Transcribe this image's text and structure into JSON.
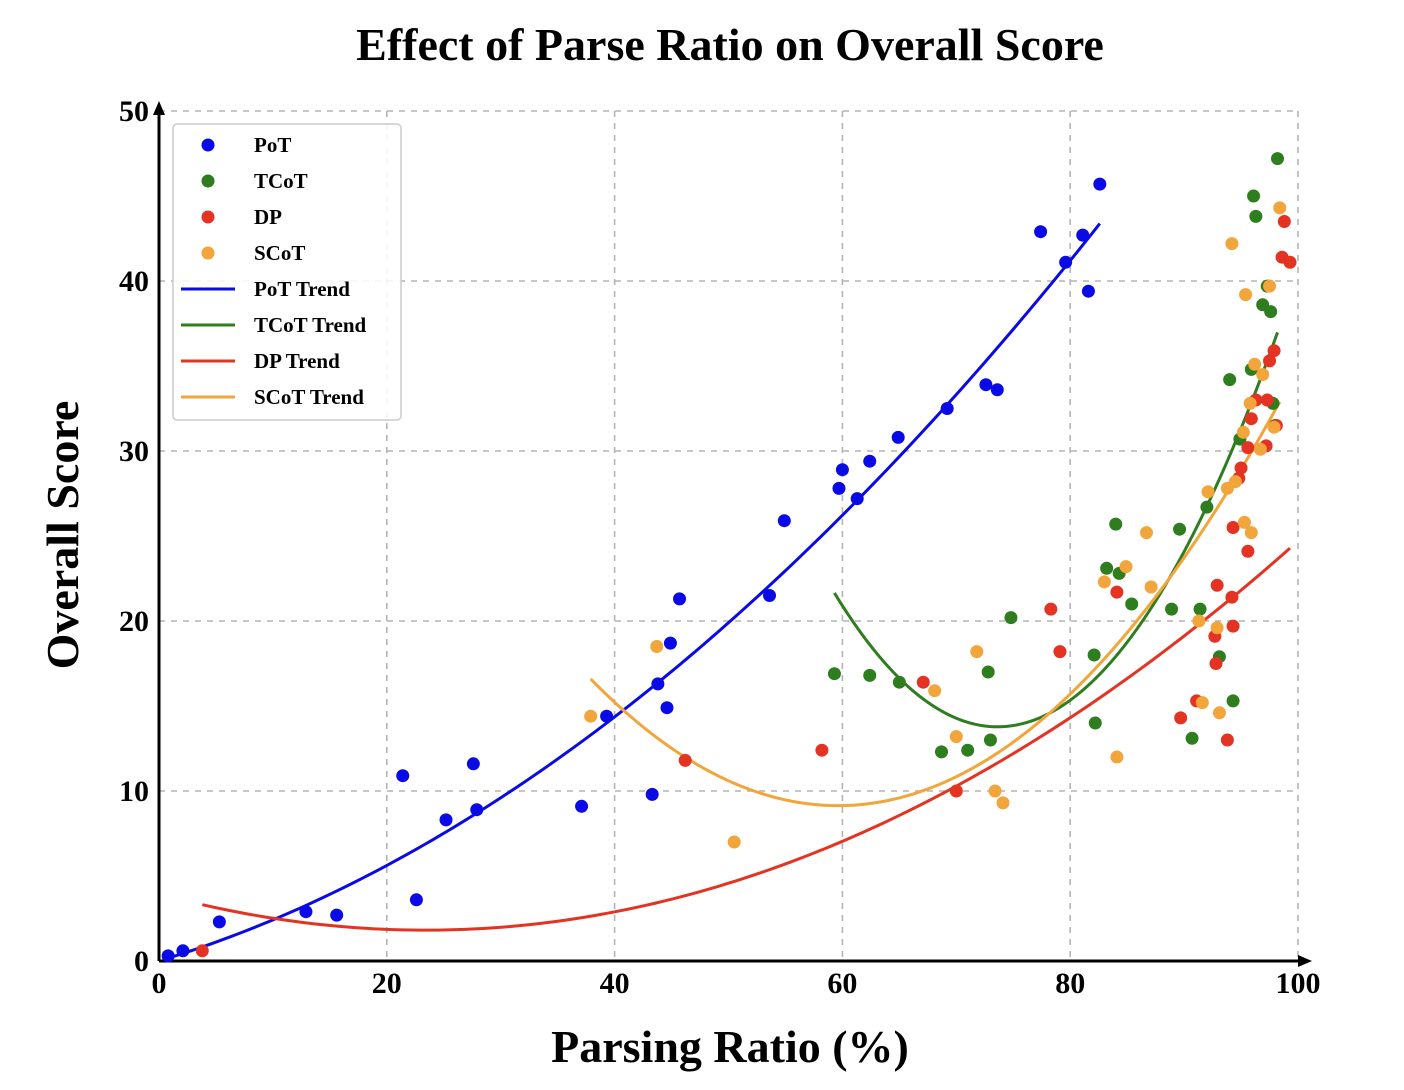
{
  "chart_data": {
    "type": "scatter",
    "title": "Effect of Parse Ratio on Overall Score",
    "xlabel": "Parsing Ratio (%)",
    "ylabel": "Overall Score",
    "xlim": [
      0,
      100
    ],
    "ylim": [
      0,
      50
    ],
    "xticks": [
      0,
      20,
      40,
      60,
      80,
      100
    ],
    "yticks": [
      0,
      10,
      20,
      30,
      40,
      50
    ],
    "grid": true,
    "legend_position": "top-left",
    "series": [
      {
        "name": "PoT",
        "color": "#0a0ae6",
        "points": [
          [
            0.8,
            0.3
          ],
          [
            2.1,
            0.6
          ],
          [
            5.3,
            2.3
          ],
          [
            12.9,
            2.9
          ],
          [
            15.6,
            2.7
          ],
          [
            21.4,
            10.9
          ],
          [
            22.6,
            3.6
          ],
          [
            25.2,
            8.3
          ],
          [
            27.6,
            11.6
          ],
          [
            27.9,
            8.9
          ],
          [
            37.1,
            9.1
          ],
          [
            39.3,
            14.4
          ],
          [
            43.3,
            9.8
          ],
          [
            43.8,
            16.3
          ],
          [
            44.6,
            14.9
          ],
          [
            44.9,
            18.7
          ],
          [
            45.7,
            21.3
          ],
          [
            53.6,
            21.5
          ],
          [
            54.9,
            25.9
          ],
          [
            59.7,
            27.8
          ],
          [
            60.0,
            28.9
          ],
          [
            61.3,
            27.2
          ],
          [
            62.4,
            29.4
          ],
          [
            64.9,
            30.8
          ],
          [
            69.2,
            32.5
          ],
          [
            72.6,
            33.9
          ],
          [
            73.6,
            33.6
          ],
          [
            77.4,
            42.9
          ],
          [
            79.6,
            41.1
          ],
          [
            81.1,
            42.7
          ],
          [
            81.6,
            39.4
          ],
          [
            82.6,
            45.7
          ]
        ]
      },
      {
        "name": "TCoT",
        "color": "#2e7d1e",
        "points": [
          [
            59.3,
            16.9
          ],
          [
            62.4,
            16.8
          ],
          [
            65.0,
            16.4
          ],
          [
            68.7,
            12.3
          ],
          [
            71.0,
            12.4
          ],
          [
            72.8,
            17.0
          ],
          [
            73.0,
            13.0
          ],
          [
            74.8,
            20.2
          ],
          [
            82.1,
            18.0
          ],
          [
            82.2,
            14.0
          ],
          [
            83.2,
            23.1
          ],
          [
            84.0,
            25.7
          ],
          [
            84.3,
            22.8
          ],
          [
            85.4,
            21.0
          ],
          [
            88.9,
            20.7
          ],
          [
            89.6,
            25.4
          ],
          [
            90.7,
            13.1
          ],
          [
            91.4,
            20.7
          ],
          [
            92.0,
            26.7
          ],
          [
            93.1,
            17.9
          ],
          [
            94.0,
            34.2
          ],
          [
            94.3,
            15.3
          ],
          [
            94.9,
            30.7
          ],
          [
            95.9,
            34.8
          ],
          [
            96.1,
            45.0
          ],
          [
            96.3,
            43.8
          ],
          [
            96.9,
            38.6
          ],
          [
            97.3,
            39.7
          ],
          [
            97.6,
            38.2
          ],
          [
            97.8,
            32.8
          ],
          [
            98.0,
            31.5
          ],
          [
            98.2,
            47.2
          ]
        ]
      },
      {
        "name": "DP",
        "color": "#e43323",
        "points": [
          [
            3.8,
            0.6
          ],
          [
            46.2,
            11.8
          ],
          [
            58.2,
            12.4
          ],
          [
            67.1,
            16.4
          ],
          [
            70.0,
            10.0
          ],
          [
            78.3,
            20.7
          ],
          [
            79.1,
            18.2
          ],
          [
            84.1,
            21.7
          ],
          [
            89.7,
            14.3
          ],
          [
            91.1,
            15.3
          ],
          [
            92.7,
            19.1
          ],
          [
            92.8,
            17.5
          ],
          [
            92.9,
            22.1
          ],
          [
            93.8,
            13.0
          ],
          [
            94.2,
            21.4
          ],
          [
            94.3,
            19.7
          ],
          [
            94.3,
            25.5
          ],
          [
            94.8,
            28.4
          ],
          [
            95.0,
            29.0
          ],
          [
            95.6,
            30.2
          ],
          [
            95.6,
            24.1
          ],
          [
            95.9,
            31.9
          ],
          [
            96.3,
            33.0
          ],
          [
            97.2,
            30.3
          ],
          [
            97.3,
            33.0
          ],
          [
            97.5,
            35.3
          ],
          [
            97.9,
            35.9
          ],
          [
            98.1,
            31.5
          ],
          [
            98.6,
            41.4
          ],
          [
            98.8,
            43.5
          ],
          [
            99.3,
            41.1
          ]
        ]
      },
      {
        "name": "SCoT",
        "color": "#f2a53a",
        "points": [
          [
            37.9,
            14.4
          ],
          [
            43.7,
            18.5
          ],
          [
            50.5,
            7.0
          ],
          [
            68.1,
            15.9
          ],
          [
            70.0,
            13.2
          ],
          [
            71.8,
            18.2
          ],
          [
            73.4,
            10.0
          ],
          [
            74.1,
            9.3
          ],
          [
            83.0,
            22.3
          ],
          [
            84.1,
            12.0
          ],
          [
            84.9,
            23.2
          ],
          [
            86.7,
            25.2
          ],
          [
            87.1,
            22.0
          ],
          [
            91.3,
            20.0
          ],
          [
            91.6,
            15.2
          ],
          [
            92.1,
            27.6
          ],
          [
            92.9,
            19.6
          ],
          [
            93.1,
            14.6
          ],
          [
            93.8,
            27.8
          ],
          [
            94.2,
            42.2
          ],
          [
            94.5,
            28.2
          ],
          [
            95.2,
            31.1
          ],
          [
            95.3,
            25.8
          ],
          [
            95.4,
            39.2
          ],
          [
            95.8,
            32.8
          ],
          [
            95.9,
            25.2
          ],
          [
            96.2,
            35.1
          ],
          [
            96.7,
            30.1
          ],
          [
            96.9,
            34.5
          ],
          [
            97.5,
            39.7
          ],
          [
            97.9,
            31.4
          ],
          [
            98.4,
            44.3
          ]
        ]
      }
    ],
    "trends": [
      {
        "name": "PoT Trend",
        "color": "#0a0ae6",
        "x_range": [
          0.8,
          82.6
        ],
        "coef": [
          0.0039,
          0.203,
          0.0
        ]
      },
      {
        "name": "TCoT Trend",
        "color": "#2e7d1e",
        "x_range": [
          59.3,
          98.2
        ],
        "coef": [
          0.0384,
          -5.654,
          221.9
        ]
      },
      {
        "name": "DP Trend",
        "color": "#e43323",
        "x_range": [
          3.8,
          99.3
        ],
        "coef": [
          0.0039,
          -0.1825,
          3.95
        ]
      },
      {
        "name": "SCoT Trend",
        "color": "#f2a53a",
        "x_range": [
          37.9,
          98.4
        ],
        "coef": [
          0.0158,
          -1.884,
          65.3
        ]
      }
    ]
  }
}
